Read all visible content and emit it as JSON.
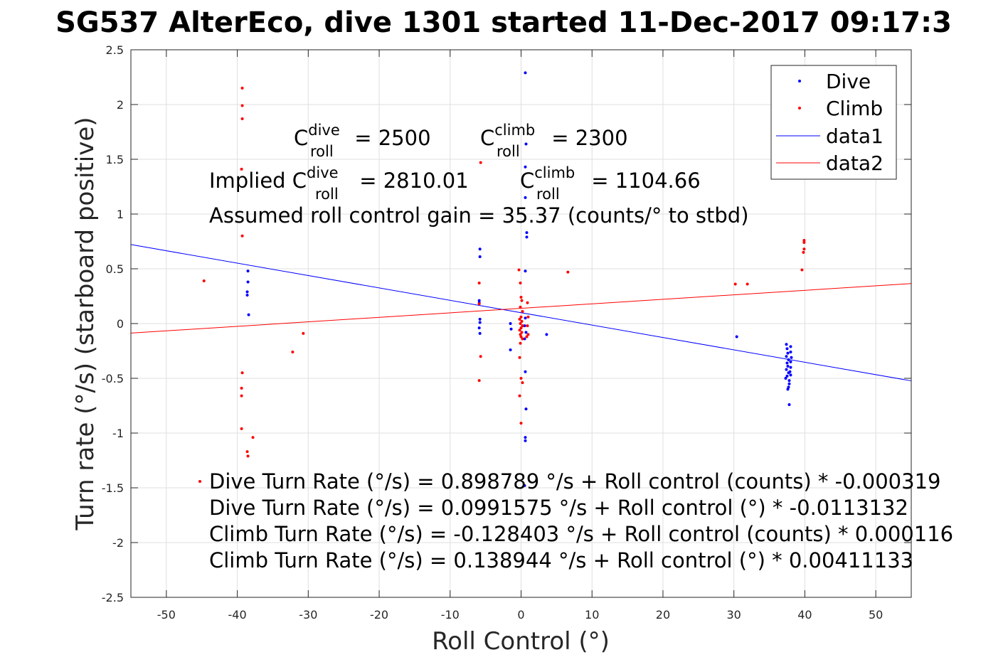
{
  "chart_data": {
    "type": "scatter",
    "title": "SG537 AlterEco, dive 1301 started 11-Dec-2017 09:17:3",
    "xlabel": "Roll Control (°)",
    "ylabel": "Turn rate (°/s) (starboard positive)",
    "xlim": [
      -55,
      55
    ],
    "ylim": [
      -2.5,
      2.5
    ],
    "xticks": [
      "-50",
      "-40",
      "-30",
      "-20",
      "-10",
      "0",
      "10",
      "20",
      "30",
      "40",
      "50"
    ],
    "yticks": [
      "2.5",
      "2",
      "1.5",
      "1",
      "0.5",
      "0",
      "-0.5",
      "-1",
      "-1.5",
      "-2",
      "-2.5"
    ],
    "grid": true,
    "legend_position": "top-right",
    "series": [
      {
        "name": "Dive",
        "kind": "points",
        "color": "#0000ff",
        "points": [
          [
            -38.5,
            0.48
          ],
          [
            -38.5,
            0.38
          ],
          [
            -38.6,
            0.29
          ],
          [
            -38.6,
            0.26
          ],
          [
            -38.4,
            0.08
          ],
          [
            -5.8,
            0.68
          ],
          [
            -5.8,
            0.61
          ],
          [
            -5.9,
            0.21
          ],
          [
            -5.9,
            0.19
          ],
          [
            -5.8,
            0.04
          ],
          [
            -5.8,
            0.01
          ],
          [
            -5.9,
            -0.04
          ],
          [
            -5.8,
            -0.09
          ],
          [
            -1.5,
            0.0
          ],
          [
            -1.4,
            -0.05
          ],
          [
            -1.5,
            -0.24
          ],
          [
            0.6,
            2.29
          ],
          [
            0.7,
            1.64
          ],
          [
            0.6,
            1.43
          ],
          [
            0.6,
            1.15
          ],
          [
            0.8,
            0.83
          ],
          [
            0.8,
            0.79
          ],
          [
            0.6,
            0.48
          ],
          [
            0.6,
            0.05
          ],
          [
            0.5,
            -0.02
          ],
          [
            0.7,
            -0.08
          ],
          [
            0.5,
            -0.14
          ],
          [
            0.6,
            -0.44
          ],
          [
            0.7,
            -0.78
          ],
          [
            0.6,
            -1.04
          ],
          [
            0.6,
            -1.07
          ],
          [
            0.5,
            -1.48
          ],
          [
            3.6,
            -0.1
          ],
          [
            30.4,
            -0.12
          ],
          [
            37.4,
            -0.19
          ],
          [
            37.5,
            -0.23
          ],
          [
            37.6,
            -0.27
          ],
          [
            37.4,
            -0.3
          ],
          [
            37.7,
            -0.33
          ],
          [
            37.5,
            -0.36
          ],
          [
            37.6,
            -0.39
          ],
          [
            37.4,
            -0.42
          ],
          [
            37.7,
            -0.45
          ],
          [
            37.5,
            -0.48
          ],
          [
            37.3,
            -0.5
          ],
          [
            37.8,
            -0.52
          ],
          [
            37.8,
            -0.55
          ],
          [
            37.7,
            -0.58
          ],
          [
            37.6,
            -0.6
          ],
          [
            37.8,
            -0.74
          ],
          [
            38.0,
            -0.21
          ],
          [
            38.0,
            -0.26
          ],
          [
            38.1,
            -0.31
          ],
          [
            38.0,
            -0.35
          ],
          [
            38.0,
            -0.4
          ],
          [
            37.9,
            -0.44
          ],
          [
            38.0,
            -0.47
          ]
        ]
      },
      {
        "name": "Climb",
        "kind": "points",
        "color": "#ff0000",
        "points": [
          [
            -44.7,
            0.39
          ],
          [
            -39.3,
            2.15
          ],
          [
            -39.3,
            1.99
          ],
          [
            -39.3,
            1.87
          ],
          [
            -39.4,
            1.41
          ],
          [
            -39.3,
            0.8
          ],
          [
            -39.3,
            -0.45
          ],
          [
            -39.4,
            -0.59
          ],
          [
            -39.4,
            -0.66
          ],
          [
            -39.4,
            -0.96
          ],
          [
            -38.6,
            -1.17
          ],
          [
            -38.5,
            -1.21
          ],
          [
            -37.8,
            -1.04
          ],
          [
            -32.2,
            -0.26
          ],
          [
            -30.7,
            -0.09
          ],
          [
            -5.7,
            1.47
          ],
          [
            -5.9,
            0.37
          ],
          [
            -5.9,
            0.18
          ],
          [
            -5.7,
            -0.3
          ],
          [
            -5.9,
            -0.52
          ],
          [
            -0.3,
            0.49
          ],
          [
            -0.1,
            0.37
          ],
          [
            0.0,
            0.24
          ],
          [
            0.1,
            0.21
          ],
          [
            -0.1,
            0.15
          ],
          [
            0.2,
            0.11
          ],
          [
            0.0,
            0.06
          ],
          [
            -0.2,
            0.04
          ],
          [
            0.1,
            0.02
          ],
          [
            -0.1,
            0.0
          ],
          [
            0.2,
            -0.02
          ],
          [
            0.0,
            -0.04
          ],
          [
            -0.2,
            -0.06
          ],
          [
            0.1,
            -0.08
          ],
          [
            -0.1,
            -0.1
          ],
          [
            0.0,
            -0.12
          ],
          [
            0.2,
            -0.14
          ],
          [
            -0.1,
            -0.18
          ],
          [
            -0.2,
            -0.31
          ],
          [
            0.0,
            -0.5
          ],
          [
            0.2,
            -0.54
          ],
          [
            -0.2,
            -0.66
          ],
          [
            0.0,
            -0.91
          ],
          [
            0.9,
            0.19
          ],
          [
            1.0,
            0.06
          ],
          [
            0.9,
            -0.02
          ],
          [
            1.0,
            -0.1
          ],
          [
            0.8,
            -0.12
          ],
          [
            6.6,
            0.47
          ],
          [
            30.2,
            0.36
          ],
          [
            31.9,
            0.36
          ],
          [
            39.6,
            0.49
          ],
          [
            39.8,
            0.65
          ],
          [
            39.9,
            0.68
          ],
          [
            39.9,
            0.74
          ],
          [
            39.9,
            0.76
          ]
        ]
      },
      {
        "name": "data1",
        "kind": "line",
        "color": "#0000ff",
        "x": [
          -55,
          55
        ],
        "y": [
          0.7214,
          -0.5231
        ]
      },
      {
        "name": "data2",
        "kind": "line",
        "color": "#ff0000",
        "x": [
          -55,
          55
        ],
        "y": [
          -0.0872,
          0.3651
        ]
      }
    ],
    "annotations": {
      "c_dive": {
        "prefix": "C",
        "sup": "dive",
        "sub": "roll",
        "suffix": " = 2500"
      },
      "c_climb": {
        "prefix": "C",
        "sup": "climb",
        "sub": "roll",
        "suffix": " = 2300"
      },
      "implied_dive": {
        "prefix": "Implied C",
        "sup": "dive",
        "sub": "roll",
        "suffix": " = 2810.01"
      },
      "implied_climb": {
        "prefix": "C",
        "sup": "climb",
        "sub": "roll",
        "suffix": " = 1104.66"
      },
      "gain": "Assumed roll control gain = 35.37 (counts/° to stbd)",
      "eq_lines": [
        "Dive Turn Rate (°/s) = 0.898789 °/s + Roll control (counts) * -0.000319",
        "Dive Turn Rate (°/s) = 0.0991575 °/s + Roll control (°) * -0.0113132",
        "Climb Turn Rate (°/s) = -0.128403 °/s + Roll control (counts) * 0.000116",
        "Climb Turn Rate (°/s) = 0.138944 °/s + Roll control (°) * 0.00411133"
      ]
    }
  }
}
